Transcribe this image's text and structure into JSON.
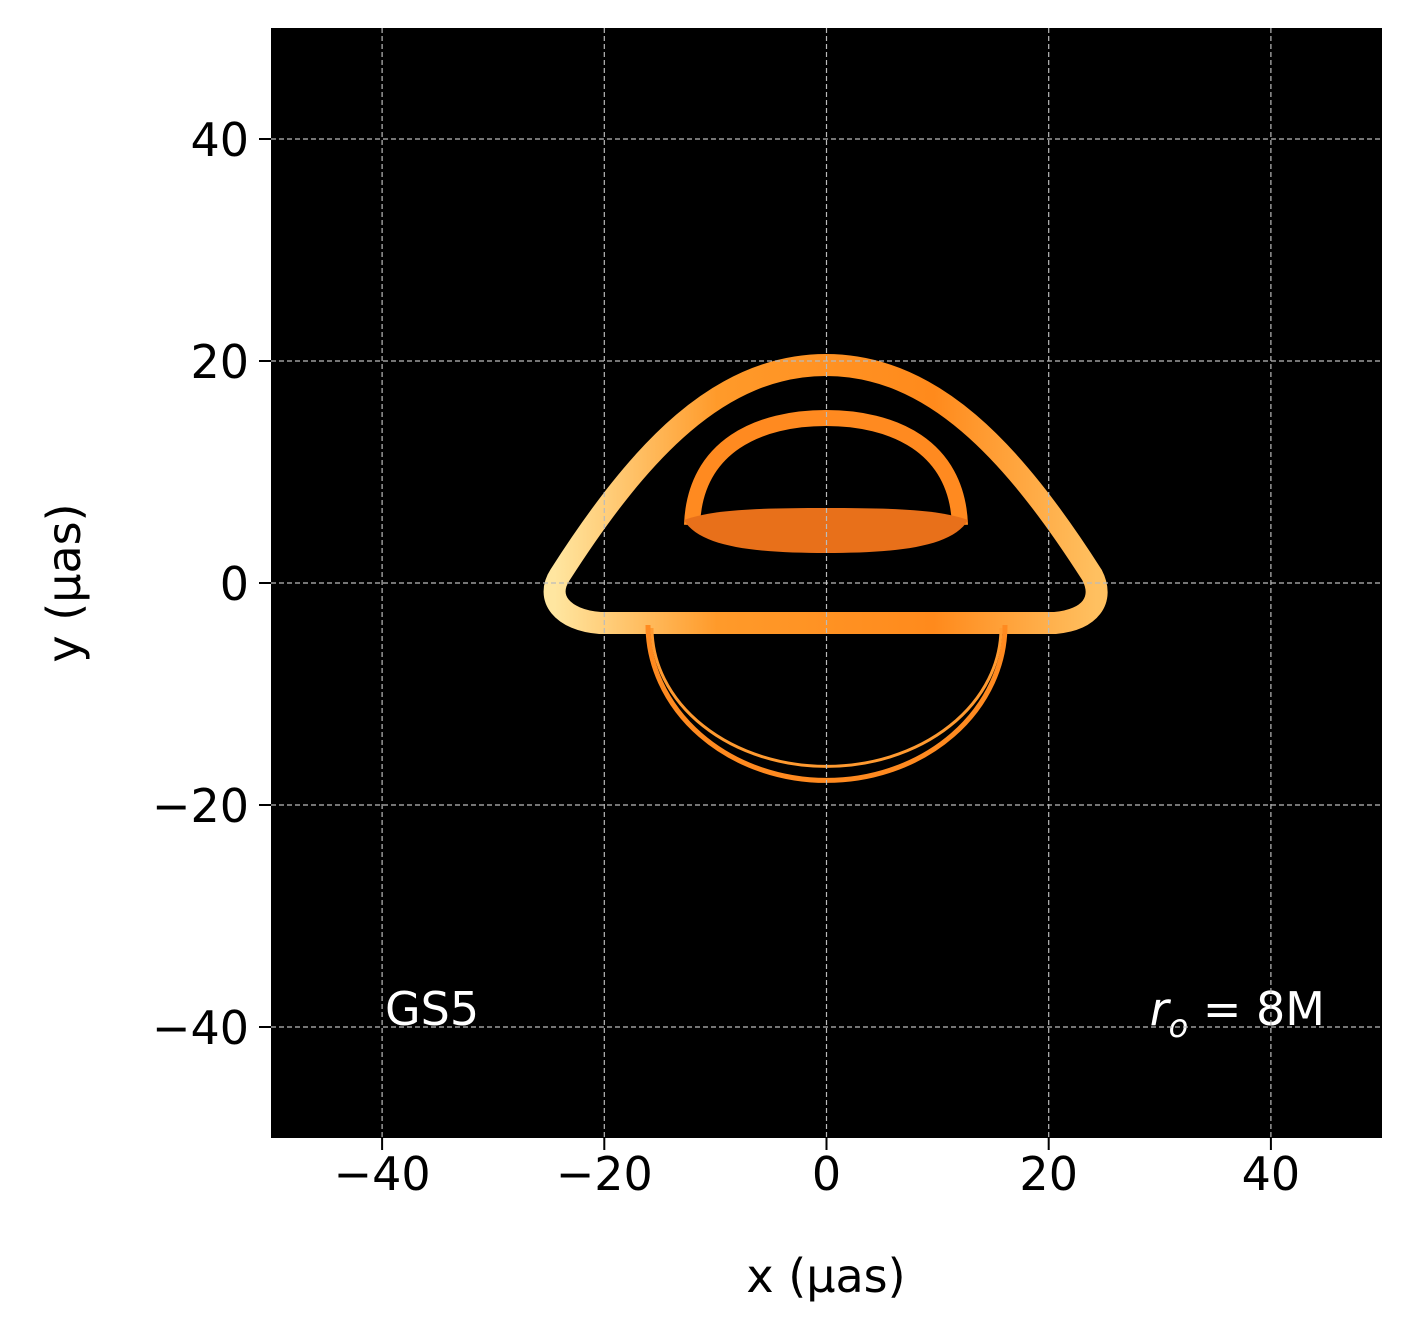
{
  "chart_data": {
    "type": "image",
    "xlabel": "x (μas)",
    "ylabel": "y (μas)",
    "xlim": [
      -50,
      50
    ],
    "ylim": [
      -50,
      50
    ],
    "xticks": [
      {
        "value": -40,
        "label": "−40"
      },
      {
        "value": -20,
        "label": "−20"
      },
      0,
      20,
      40
    ],
    "yticks": [
      {
        "value": -40,
        "label": "−40"
      },
      {
        "value": -20,
        "label": "−20"
      },
      0,
      20,
      40
    ],
    "grid": true,
    "annotations": [
      {
        "text": "GS5"
      },
      {
        "base": "r",
        "subscript": "o",
        "rest": " = 8M"
      }
    ]
  }
}
